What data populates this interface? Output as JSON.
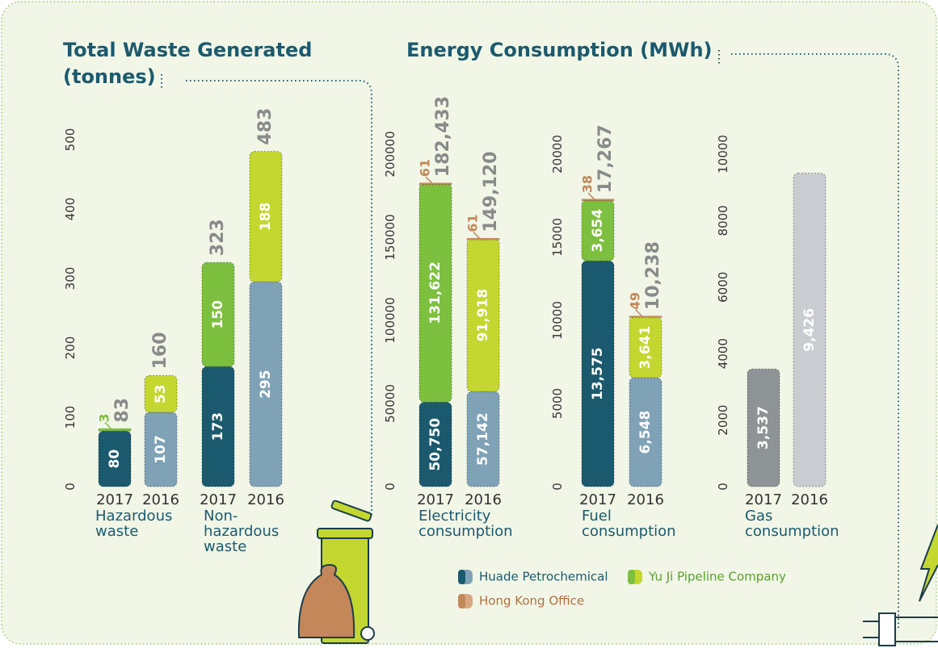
{
  "energy_title": "Energy Consumption (MWh)",
  "chart_data": [
    {
      "type": "bar",
      "stacked": true,
      "title": "Total Waste Generated (tonnes)",
      "ylim": [
        0,
        500
      ],
      "yticks": [
        0,
        100,
        200,
        300,
        400,
        500
      ],
      "groups": [
        {
          "label": "Hazardous waste",
          "categories": [
            "2017",
            "2016"
          ]
        },
        {
          "label": "Non-hazardous waste",
          "categories": [
            "2017",
            "2016"
          ]
        }
      ],
      "series": [
        {
          "colors": [
            "#1b5a6e",
            "#7fa2b7",
            "#1b5a6e",
            "#7fa2b7"
          ],
          "values": [
            80,
            107,
            173,
            295
          ]
        },
        {
          "colors": [
            "#7dbf3e",
            "#c3d730",
            "#7dbf3e",
            "#c3d730"
          ],
          "values": [
            3,
            53,
            150,
            188
          ]
        }
      ],
      "totals": [
        83,
        160,
        323,
        483
      ]
    },
    {
      "type": "bar",
      "stacked": true,
      "ylim": [
        0,
        200000
      ],
      "yticks": [
        0,
        50000,
        100000,
        150000,
        200000
      ],
      "groups": [
        {
          "label": "Electricity consumption",
          "categories": [
            "2017",
            "2016"
          ]
        }
      ],
      "series": [
        {
          "name": "Huade Petrochemical",
          "colors": [
            "#1b5a6e",
            "#7fa2b7"
          ],
          "values": [
            50750,
            57142
          ],
          "value_labels": [
            "50,750",
            "57,142"
          ]
        },
        {
          "name": "Yu Ji Pipeline Company",
          "colors": [
            "#7dbf3e",
            "#c3d730"
          ],
          "values": [
            131622,
            91918
          ],
          "value_labels": [
            "131,622",
            "91,918"
          ]
        },
        {
          "name": "Hong Kong Office",
          "colors": [
            "#c4875a",
            "#d9a77f"
          ],
          "values": [
            61,
            61
          ]
        }
      ],
      "totals": [
        182433,
        149120
      ],
      "total_labels": [
        "182,433",
        "149,120"
      ]
    },
    {
      "type": "bar",
      "stacked": true,
      "ylim": [
        0,
        20000
      ],
      "yticks": [
        0,
        5000,
        10000,
        15000,
        20000
      ],
      "groups": [
        {
          "label": "Fuel consumption",
          "categories": [
            "2017",
            "2016"
          ]
        }
      ],
      "series": [
        {
          "colors": [
            "#1b5a6e",
            "#7fa2b7"
          ],
          "values": [
            13575,
            6548
          ],
          "value_labels": [
            "13,575",
            "6,548"
          ]
        },
        {
          "colors": [
            "#7dbf3e",
            "#c3d730"
          ],
          "values": [
            3654,
            3641
          ],
          "value_labels": [
            "3,654",
            "3,641"
          ]
        },
        {
          "colors": [
            "#c4875a",
            "#d9a77f"
          ],
          "values": [
            38,
            49
          ]
        }
      ],
      "totals": [
        17267,
        10238
      ],
      "total_labels": [
        "17,267",
        "10,238"
      ]
    },
    {
      "type": "bar",
      "stacked": true,
      "ylim": [
        0,
        10000
      ],
      "yticks": [
        0,
        2000,
        4000,
        6000,
        8000,
        10000
      ],
      "groups": [
        {
          "label": "Gas consumption",
          "categories": [
            "2017",
            "2016"
          ]
        }
      ],
      "series": [
        {
          "colors": [
            "#8e9396",
            "#c9cdd2"
          ],
          "values": [
            3537,
            9426
          ],
          "value_labels": [
            "3,537",
            "9,426"
          ]
        }
      ]
    }
  ]
}
